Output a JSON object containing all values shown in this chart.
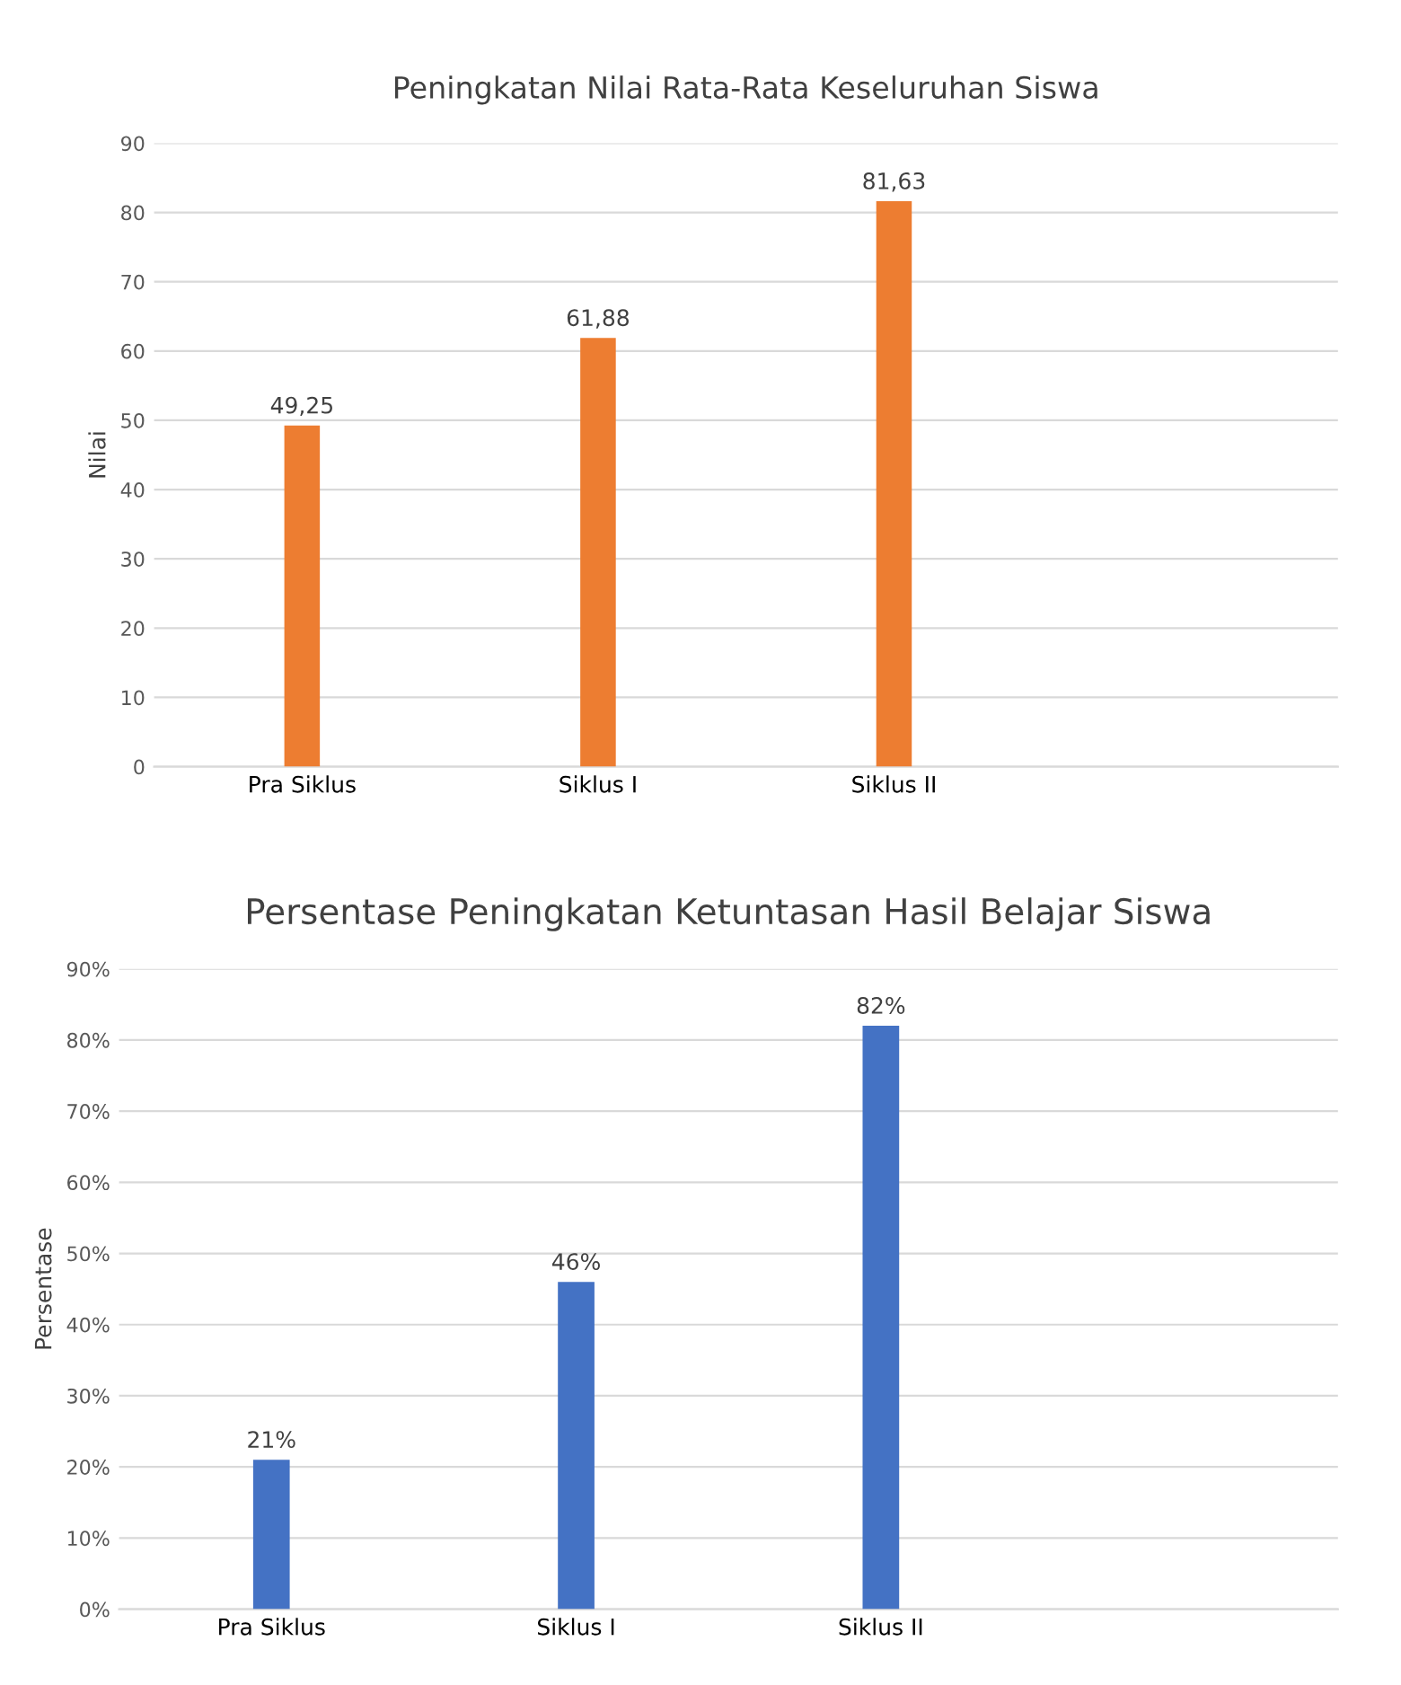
{
  "chart_data": [
    {
      "type": "bar",
      "title": "Peningkatan Nilai Rata-Rata Keseluruhan Siswa",
      "ylabel": "Nilai",
      "categories": [
        "Pra Siklus",
        "Siklus I",
        "Siklus II",
        null
      ],
      "values": [
        49.25,
        61.88,
        81.63,
        null
      ],
      "color": "#ed7d31",
      "value_labels": [
        "49,25",
        "61,88",
        "81,63",
        null
      ],
      "ylim": [
        0,
        90
      ],
      "yticks": [
        0,
        10,
        20,
        30,
        40,
        50,
        60,
        70,
        80,
        90
      ],
      "grid": "y",
      "legend": false
    },
    {
      "type": "bar",
      "title": "Persentase Peningkatan Ketuntasan Hasil Belajar Siswa",
      "ylabel": "Persentase",
      "categories": [
        "Pra Siklus",
        "Siklus I",
        "Siklus II",
        null
      ],
      "values": [
        21,
        46,
        82,
        null
      ],
      "color": "#4472c4",
      "value_labels": [
        "21%",
        "46%",
        "82%",
        null
      ],
      "ylim": [
        0,
        90
      ],
      "yticks": [
        {
          "value": 0,
          "label": "0%"
        },
        {
          "value": 10,
          "label": "10%"
        },
        {
          "value": 20,
          "label": "20%"
        },
        {
          "value": 30,
          "label": "30%"
        },
        {
          "value": 40,
          "label": "40%"
        },
        {
          "value": 50,
          "label": "50%"
        },
        {
          "value": 60,
          "label": "60%"
        },
        {
          "value": 70,
          "label": "70%"
        },
        {
          "value": 80,
          "label": "80%"
        },
        {
          "value": 90,
          "label": "90%"
        }
      ],
      "grid": "y",
      "legend": false
    }
  ]
}
